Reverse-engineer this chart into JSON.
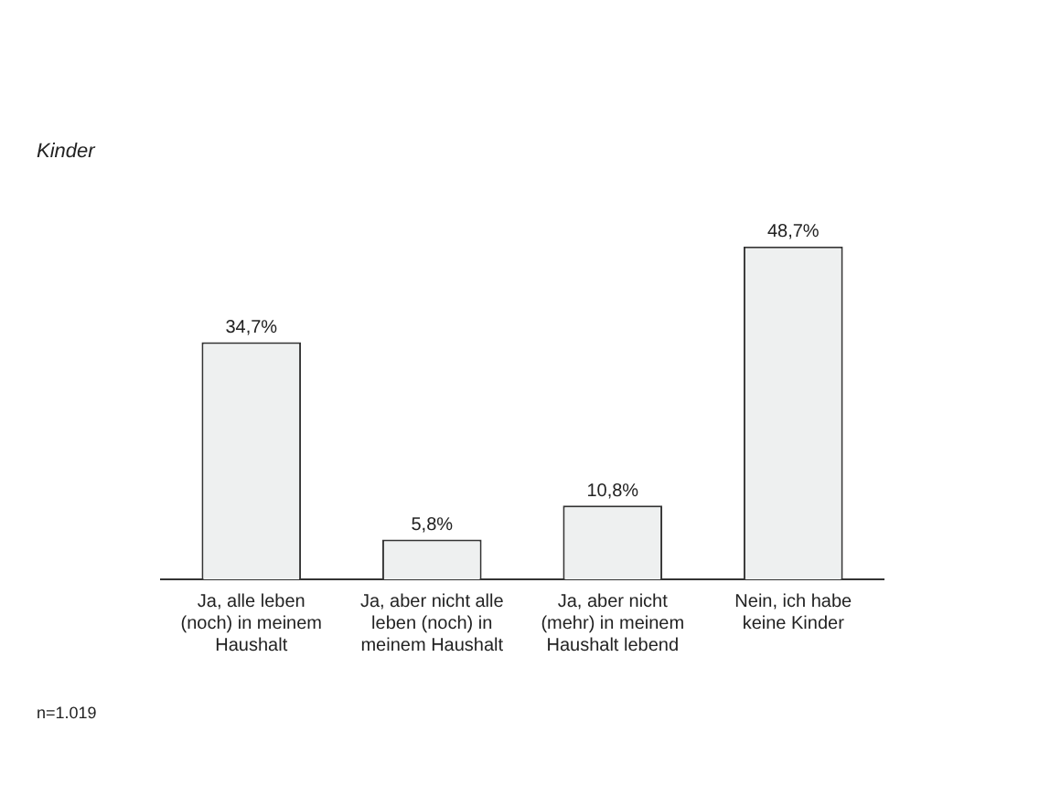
{
  "chart_data": {
    "type": "bar",
    "title": "Kinder",
    "categories": [
      "Ja, alle leben (noch) in meinem Haushalt",
      "Ja, aber nicht alle leben (noch) in meinem Haushalt",
      "Ja, aber nicht (mehr) in meinem Haushalt lebend",
      "Nein, ich habe keine Kinder"
    ],
    "values": [
      34.7,
      5.8,
      10.8,
      48.7
    ],
    "value_labels": [
      "34,7%",
      "5,8%",
      "10,8%",
      "48,7%"
    ],
    "color": "#eef0f0",
    "grid": false,
    "legend": false,
    "annotations": [
      "n=1.019"
    ]
  }
}
